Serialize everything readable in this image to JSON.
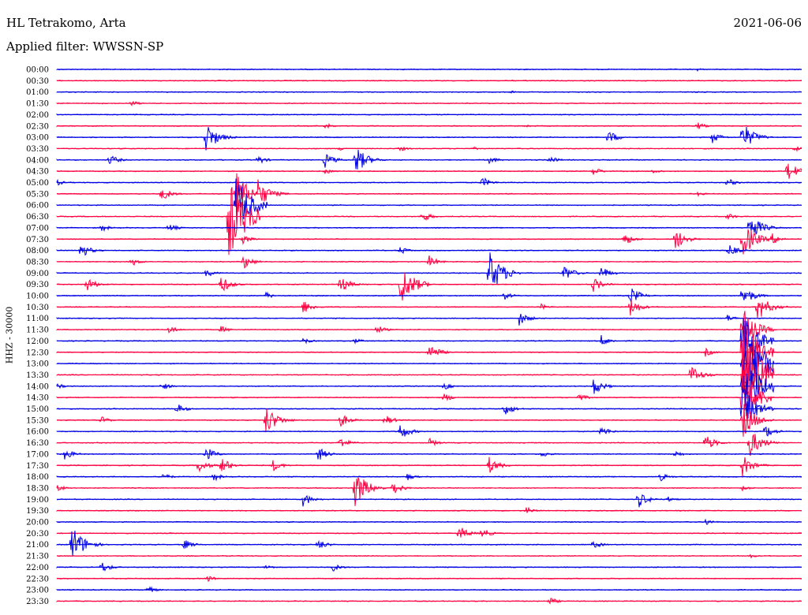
{
  "header": {
    "station": "HL Tetrakomo, Arta",
    "date": "2021-06-06",
    "filter": "Applied filter: WWSSN-SP"
  },
  "channel_label": "HHZ - 30000",
  "colors": {
    "blue": "#0000e6",
    "red": "#ff0040"
  },
  "chart_data": {
    "type": "line",
    "title": "HL Tetrakomo, Arta",
    "subtitle": "Applied filter: WWSSN-SP",
    "ylabel": "HHZ - 30000",
    "xlabel": "",
    "x_range_minutes": [
      0,
      30
    ],
    "grid": false,
    "legend": "none",
    "row_colors": [
      "#0000e6",
      "#ff0040"
    ],
    "rows": [
      {
        "label": "00:00",
        "events": [
          [
            0.05,
            1
          ],
          [
            0.86,
            2
          ]
        ]
      },
      {
        "label": "00:30",
        "events": [
          [
            0.12,
            1
          ],
          [
            0.61,
            1
          ]
        ]
      },
      {
        "label": "01:00",
        "events": [
          [
            0.3,
            1
          ],
          [
            0.61,
            2
          ],
          [
            0.92,
            1
          ]
        ]
      },
      {
        "label": "01:30",
        "events": [
          [
            0.06,
            1
          ],
          [
            0.1,
            4
          ],
          [
            0.33,
            1
          ]
        ]
      },
      {
        "label": "02:00",
        "events": [
          [
            0.51,
            1
          ]
        ]
      },
      {
        "label": "02:30",
        "events": [
          [
            0.36,
            4
          ],
          [
            0.63,
            2
          ],
          [
            0.86,
            5
          ]
        ]
      },
      {
        "label": "03:00",
        "events": [
          [
            0.2,
            20
          ],
          [
            0.74,
            10
          ],
          [
            0.88,
            8
          ],
          [
            0.92,
            20
          ]
        ]
      },
      {
        "label": "03:30",
        "events": [
          [
            0.38,
            3
          ],
          [
            0.46,
            4
          ],
          [
            0.56,
            2
          ],
          [
            0.99,
            4
          ]
        ]
      },
      {
        "label": "04:00",
        "events": [
          [
            0.07,
            8
          ],
          [
            0.27,
            6
          ],
          [
            0.36,
            10
          ],
          [
            0.4,
            20
          ],
          [
            0.58,
            6
          ],
          [
            0.66,
            6
          ]
        ]
      },
      {
        "label": "04:30",
        "events": [
          [
            0.36,
            4
          ],
          [
            0.72,
            6
          ],
          [
            0.8,
            4
          ],
          [
            0.98,
            15
          ]
        ]
      },
      {
        "label": "05:00",
        "events": [
          [
            0.0,
            4
          ],
          [
            0.57,
            8
          ],
          [
            0.9,
            6
          ]
        ]
      },
      {
        "label": "05:30",
        "events": [
          [
            0.14,
            10
          ],
          [
            0.24,
            30
          ],
          [
            0.27,
            20
          ],
          [
            0.86,
            3
          ]
        ]
      },
      {
        "label": "06:00",
        "events": [
          [
            0.24,
            40
          ]
        ]
      },
      {
        "label": "06:30",
        "events": [
          [
            0.23,
            55
          ],
          [
            0.49,
            8
          ],
          [
            0.9,
            5
          ]
        ]
      },
      {
        "label": "07:00",
        "events": [
          [
            0.06,
            5
          ],
          [
            0.15,
            6
          ],
          [
            0.93,
            20
          ]
        ]
      },
      {
        "label": "07:30",
        "events": [
          [
            0.25,
            6
          ],
          [
            0.76,
            10
          ],
          [
            0.83,
            15
          ],
          [
            0.92,
            25
          ],
          [
            0.96,
            8
          ]
        ]
      },
      {
        "label": "08:00",
        "events": [
          [
            0.03,
            12
          ],
          [
            0.46,
            6
          ],
          [
            0.9,
            10
          ]
        ]
      },
      {
        "label": "08:30",
        "events": [
          [
            0.1,
            6
          ],
          [
            0.25,
            10
          ],
          [
            0.5,
            8
          ]
        ]
      },
      {
        "label": "09:00",
        "events": [
          [
            0.2,
            6
          ],
          [
            0.58,
            30
          ],
          [
            0.68,
            12
          ],
          [
            0.73,
            10
          ]
        ]
      },
      {
        "label": "09:30",
        "events": [
          [
            0.04,
            10
          ],
          [
            0.22,
            12
          ],
          [
            0.38,
            12
          ],
          [
            0.46,
            30
          ],
          [
            0.72,
            10
          ]
        ]
      },
      {
        "label": "10:00",
        "events": [
          [
            0.28,
            5
          ],
          [
            0.6,
            6
          ],
          [
            0.77,
            12
          ],
          [
            0.92,
            15
          ]
        ]
      },
      {
        "label": "10:30",
        "events": [
          [
            0.33,
            10
          ],
          [
            0.65,
            4
          ],
          [
            0.77,
            12
          ],
          [
            0.94,
            20
          ]
        ]
      },
      {
        "label": "11:00",
        "events": [
          [
            0.62,
            10
          ],
          [
            0.9,
            5
          ]
        ]
      },
      {
        "label": "11:30",
        "events": [
          [
            0.15,
            6
          ],
          [
            0.22,
            5
          ],
          [
            0.43,
            6
          ],
          [
            0.92,
            30
          ]
        ]
      },
      {
        "label": "12:00",
        "events": [
          [
            0.33,
            5
          ],
          [
            0.4,
            4
          ],
          [
            0.73,
            8
          ],
          [
            0.92,
            40
          ]
        ]
      },
      {
        "label": "12:30",
        "events": [
          [
            0.5,
            12
          ],
          [
            0.87,
            6
          ],
          [
            0.92,
            50
          ]
        ]
      },
      {
        "label": "13:00",
        "events": [
          [
            0.92,
            60
          ]
        ]
      },
      {
        "label": "13:30",
        "events": [
          [
            0.85,
            15
          ],
          [
            0.92,
            60
          ]
        ]
      },
      {
        "label": "14:00",
        "events": [
          [
            0.0,
            4
          ],
          [
            0.14,
            6
          ],
          [
            0.52,
            5
          ],
          [
            0.72,
            12
          ],
          [
            0.92,
            50
          ]
        ]
      },
      {
        "label": "14:30",
        "events": [
          [
            0.52,
            6
          ],
          [
            0.7,
            6
          ],
          [
            0.92,
            40
          ]
        ]
      },
      {
        "label": "15:00",
        "events": [
          [
            0.16,
            8
          ],
          [
            0.6,
            10
          ],
          [
            0.92,
            30
          ]
        ]
      },
      {
        "label": "15:30",
        "events": [
          [
            0.06,
            5
          ],
          [
            0.28,
            20
          ],
          [
            0.38,
            10
          ],
          [
            0.44,
            8
          ],
          [
            0.92,
            25
          ]
        ]
      },
      {
        "label": "16:00",
        "events": [
          [
            0.46,
            12
          ],
          [
            0.73,
            8
          ],
          [
            0.95,
            10
          ]
        ]
      },
      {
        "label": "16:30",
        "events": [
          [
            0.38,
            8
          ],
          [
            0.5,
            6
          ],
          [
            0.87,
            12
          ],
          [
            0.93,
            20
          ]
        ]
      },
      {
        "label": "17:00",
        "events": [
          [
            0.01,
            8
          ],
          [
            0.2,
            10
          ],
          [
            0.35,
            10
          ],
          [
            0.65,
            5
          ],
          [
            0.83,
            5
          ]
        ]
      },
      {
        "label": "17:30",
        "events": [
          [
            0.19,
            10
          ],
          [
            0.22,
            12
          ],
          [
            0.29,
            8
          ],
          [
            0.58,
            12
          ],
          [
            0.92,
            15
          ]
        ]
      },
      {
        "label": "18:00",
        "events": [
          [
            0.14,
            6
          ],
          [
            0.21,
            6
          ],
          [
            0.47,
            5
          ],
          [
            0.81,
            6
          ]
        ]
      },
      {
        "label": "18:30",
        "events": [
          [
            0.0,
            5
          ],
          [
            0.4,
            25
          ],
          [
            0.45,
            10
          ],
          [
            0.92,
            4
          ]
        ]
      },
      {
        "label": "19:00",
        "events": [
          [
            0.33,
            10
          ],
          [
            0.78,
            12
          ],
          [
            0.82,
            4
          ]
        ]
      },
      {
        "label": "19:30",
        "events": [
          [
            0.63,
            5
          ]
        ]
      },
      {
        "label": "20:00",
        "events": [
          [
            0.87,
            5
          ]
        ]
      },
      {
        "label": "20:30",
        "events": [
          [
            0.54,
            10
          ],
          [
            0.57,
            8
          ]
        ]
      },
      {
        "label": "21:00",
        "events": [
          [
            0.02,
            25
          ],
          [
            0.17,
            8
          ],
          [
            0.35,
            8
          ],
          [
            0.72,
            6
          ]
        ]
      },
      {
        "label": "21:30",
        "events": [
          [
            0.93,
            3
          ]
        ]
      },
      {
        "label": "22:00",
        "events": [
          [
            0.06,
            8
          ],
          [
            0.28,
            4
          ],
          [
            0.37,
            6
          ]
        ]
      },
      {
        "label": "22:30",
        "events": [
          [
            0.2,
            5
          ]
        ]
      },
      {
        "label": "23:00",
        "events": [
          [
            0.12,
            6
          ]
        ]
      },
      {
        "label": "23:30",
        "events": [
          [
            0.66,
            6
          ]
        ]
      }
    ]
  }
}
